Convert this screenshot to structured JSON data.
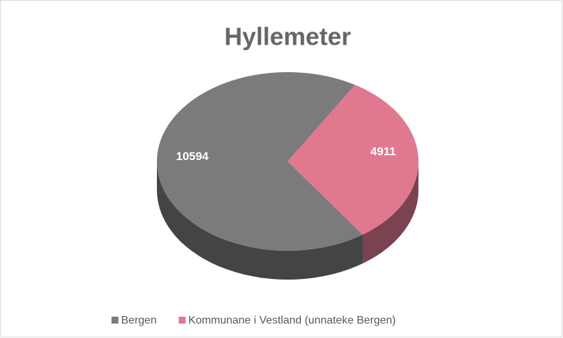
{
  "chart_data": {
    "type": "pie",
    "title": "Hyllemeter",
    "categories": [
      "Bergen",
      "Kommunane i Vestland (unnateke Bergen)"
    ],
    "values": [
      10594,
      4911
    ],
    "colors": [
      "#7b7b7b",
      "#e07890"
    ],
    "start_angle": 145,
    "three_d": true,
    "legend": "bottom"
  }
}
